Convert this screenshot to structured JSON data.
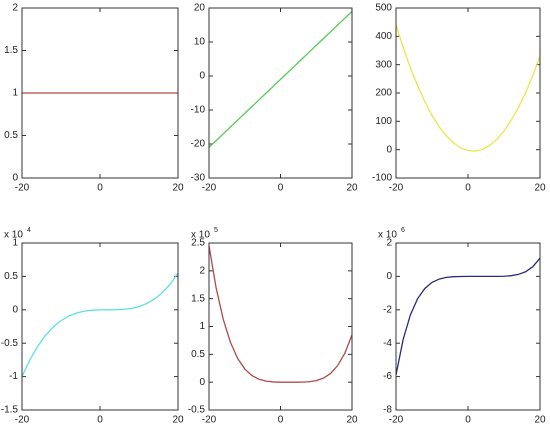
{
  "chart_data": [
    {
      "type": "line",
      "x": [
        -20,
        -18,
        -16,
        -14,
        -12,
        -10,
        -8,
        -6,
        -4,
        -2,
        0,
        2,
        4,
        6,
        8,
        10,
        12,
        14,
        16,
        18,
        20
      ],
      "series": [
        {
          "color": "#b5494b",
          "values": [
            1,
            1,
            1,
            1,
            1,
            1,
            1,
            1,
            1,
            1,
            1,
            1,
            1,
            1,
            1,
            1,
            1,
            1,
            1,
            1,
            1
          ]
        }
      ],
      "xlim": [
        -20,
        20
      ],
      "xticks": [
        -20,
        0,
        20
      ],
      "ylim": [
        0,
        2
      ],
      "yticks": [
        0,
        0.5,
        1,
        1.5,
        2
      ]
    },
    {
      "type": "line",
      "x": [
        -20,
        -18,
        -16,
        -14,
        -12,
        -10,
        -8,
        -6,
        -4,
        -2,
        0,
        2,
        4,
        6,
        8,
        10,
        12,
        14,
        16,
        18,
        20
      ],
      "series": [
        {
          "color": "#55cc55",
          "values": [
            -21,
            -19,
            -17,
            -15,
            -13,
            -11,
            -9,
            -7,
            -5,
            -3,
            -1,
            1,
            3,
            5,
            7,
            9,
            11,
            13,
            15,
            17,
            19
          ]
        }
      ],
      "xlim": [
        -20,
        20
      ],
      "xticks": [
        -20,
        0,
        20
      ],
      "ylim": [
        -30,
        20
      ],
      "yticks": [
        -30,
        -20,
        -10,
        0,
        10,
        20
      ]
    },
    {
      "type": "line",
      "x": [
        -20,
        -18,
        -16,
        -14,
        -12,
        -10,
        -8,
        -6,
        -4,
        -2,
        0,
        2,
        4,
        6,
        8,
        10,
        12,
        14,
        16,
        18,
        20
      ],
      "series": [
        {
          "color": "#e8e84a",
          "values": [
            440,
            361,
            289,
            226,
            170,
            121,
            81,
            48,
            24,
            6,
            -3,
            -5,
            1,
            15,
            37,
            66,
            104,
            149,
            201,
            262,
            330
          ]
        }
      ],
      "xlim": [
        -20,
        20
      ],
      "xticks": [
        -20,
        0,
        20
      ],
      "ylim": [
        -100,
        500
      ],
      "yticks": [
        -100,
        0,
        100,
        200,
        300,
        400,
        500
      ]
    },
    {
      "type": "line",
      "x": [
        -20,
        -18,
        -16,
        -14,
        -12,
        -10,
        -8,
        -6,
        -4,
        -2,
        0,
        2,
        4,
        6,
        8,
        10,
        12,
        14,
        16,
        18,
        20
      ],
      "series": [
        {
          "color": "#5fe0e0",
          "values": [
            -1.0,
            -0.751,
            -0.548,
            -0.385,
            -0.258,
            -0.162,
            -0.094,
            -0.048,
            -0.02,
            -0.006,
            -0.001,
            0,
            0.001,
            0.006,
            0.02,
            0.048,
            0.094,
            0.162,
            0.258,
            0.385,
            0.548
          ]
        }
      ],
      "xlim": [
        -20,
        20
      ],
      "xticks": [
        -20,
        0,
        20
      ],
      "ylim": [
        -1.5,
        1
      ],
      "yticks": [
        -1.5,
        -1,
        -0.5,
        0,
        0.5,
        1
      ],
      "multiplier": {
        "base": "x 10",
        "exponent": "4"
      }
    },
    {
      "type": "line",
      "x": [
        -20,
        -18,
        -16,
        -14,
        -12,
        -10,
        -8,
        -6,
        -4,
        -2,
        0,
        2,
        4,
        6,
        8,
        10,
        12,
        14,
        16,
        18,
        20
      ],
      "series": [
        {
          "color": "#b04a4a",
          "values": [
            2.45,
            1.692,
            1.125,
            0.715,
            0.428,
            0.238,
            0.119,
            0.052,
            0.018,
            0.004,
            0,
            0,
            0,
            0.001,
            0.008,
            0.028,
            0.072,
            0.156,
            0.299,
            0.521,
            0.85
          ]
        }
      ],
      "xlim": [
        -20,
        20
      ],
      "xticks": [
        -20,
        0,
        20
      ],
      "ylim": [
        -0.5,
        2.5
      ],
      "yticks": [
        -0.5,
        0,
        0.5,
        1,
        1.5,
        2,
        2.5
      ],
      "multiplier": {
        "base": "x 10",
        "exponent": "5"
      }
    },
    {
      "type": "line",
      "x": [
        -20,
        -18,
        -16,
        -14,
        -12,
        -10,
        -8,
        -6,
        -4,
        -2,
        0,
        2,
        4,
        6,
        8,
        10,
        12,
        14,
        16,
        18,
        20
      ],
      "series": [
        {
          "color": "#2b2b7a",
          "values": [
            -5.9,
            -3.769,
            -2.303,
            -1.334,
            -0.723,
            -0.359,
            -0.159,
            -0.06,
            -0.018,
            -0.004,
            0,
            0,
            0,
            0,
            0.002,
            0.011,
            0.042,
            0.118,
            0.279,
            0.58,
            1.099
          ]
        }
      ],
      "xlim": [
        -20,
        20
      ],
      "xticks": [
        -20,
        0,
        20
      ],
      "ylim": [
        -8,
        2
      ],
      "yticks": [
        -8,
        -6,
        -4,
        -2,
        0,
        2
      ],
      "multiplier": {
        "base": "x 10",
        "exponent": "6"
      }
    }
  ]
}
